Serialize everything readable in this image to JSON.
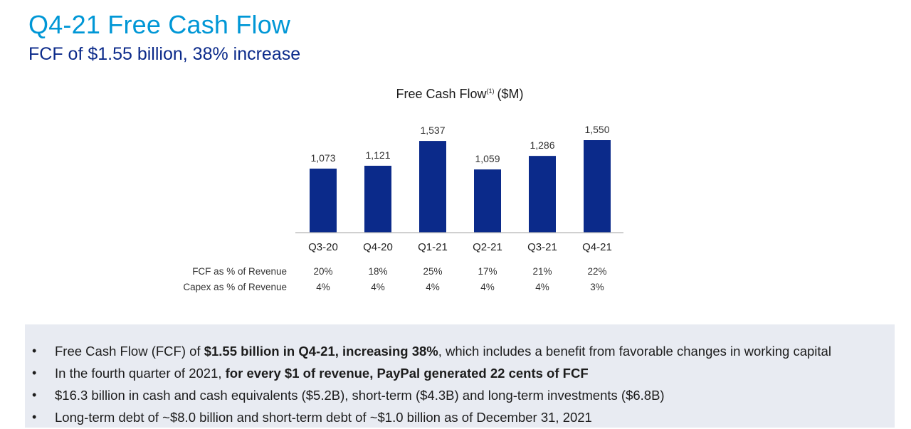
{
  "header": {
    "title": "Q4-21 Free Cash Flow",
    "subtitle": "FCF of $1.55 billion, 38% increase"
  },
  "chart_data": {
    "type": "bar",
    "title": "Free Cash Flow",
    "title_superscript": "(1)",
    "title_units": "($M)",
    "categories": [
      "Q3-20",
      "Q4-20",
      "Q1-21",
      "Q2-21",
      "Q3-21",
      "Q4-21"
    ],
    "values": [
      1073,
      1121,
      1537,
      1059,
      1286,
      1550
    ],
    "value_labels": [
      "1,073",
      "1,121",
      "1,537",
      "1,059",
      "1,286",
      "1,550"
    ],
    "bar_color": "#0b2a8a",
    "ylim": [
      0,
      1550
    ],
    "grid": false,
    "xlabel": "",
    "ylabel": ""
  },
  "metrics": [
    {
      "label": "FCF as % of Revenue",
      "values": [
        "20%",
        "18%",
        "25%",
        "17%",
        "21%",
        "22%"
      ]
    },
    {
      "label": "Capex as % of Revenue",
      "values": [
        "4%",
        "4%",
        "4%",
        "4%",
        "4%",
        "3%"
      ]
    }
  ],
  "highlights": {
    "bullet_symbol": "•",
    "items": [
      {
        "pre": "Free Cash Flow (FCF) of ",
        "bold": "$1.55 billion in Q4-21, increasing 38%",
        "post": ", which includes a benefit from favorable changes in working capital"
      },
      {
        "pre": "In the fourth quarter of 2021, ",
        "bold": "for every $1 of revenue, PayPal generated 22 cents of FCF",
        "post": ""
      },
      {
        "pre": "$16.3 billion in cash and cash equivalents ($5.2B), short-term ($4.3B) and long-term investments ($6.8B)",
        "bold": "",
        "post": ""
      },
      {
        "pre": "Long-term debt of ~$8.0 billion and short-term debt of ~$1.0 billion as of December 31, 2021",
        "bold": "",
        "post": ""
      }
    ]
  },
  "colors": {
    "title": "#0097d6",
    "subtitle": "#0b2a8a",
    "bar": "#0b2a8a",
    "axis": "#b5b5b5",
    "panel_bg": "#e8ebf2"
  }
}
